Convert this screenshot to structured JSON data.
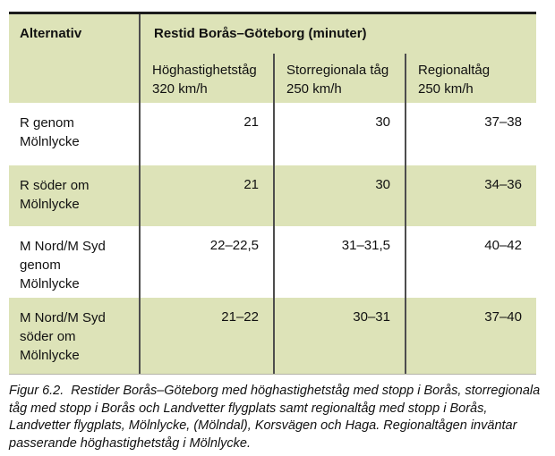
{
  "table": {
    "col1_header": "Alternativ",
    "title": "Restid Borås–Göteborg (minuter)",
    "subheaders": [
      "Höghastighetståg\n320 km/h",
      "Storregionala tåg\n250 km/h",
      "Regionaltåg\n250 km/h"
    ],
    "rows": [
      {
        "label": "R genom\nMölnlycke",
        "values": [
          "21",
          "30",
          "37–38"
        ]
      },
      {
        "label": "R söder om\nMölnlycke",
        "values": [
          "21",
          "30",
          "34–36"
        ]
      },
      {
        "label": "M Nord/M Syd\ngenom\nMölnlycke",
        "values": [
          "22–22,5",
          "31–31,5",
          "40–42"
        ]
      },
      {
        "label": "M Nord/M Syd\nsöder om\nMölnlycke",
        "values": [
          "21–22",
          "30–31",
          "37–40"
        ]
      }
    ]
  },
  "caption": "Figur 6.2.  Restider Borås–Göteborg med höghastighetståg med stopp i Borås, storregionala\ntåg med stopp i Borås och Landvetter flygplats samt regionaltåg med stopp i Borås,\nLandvetter flygplats, Mölnlycke, (Mölndal), Korsvägen och Haga. Regionaltågen inväntar\npasserande höghastighetståg i Mölnlycke.",
  "colors": {
    "row_green": "#dde3b8",
    "top_border": "#1c1c1c",
    "divider": "#4d4d4d"
  },
  "chart_data": {
    "type": "table",
    "title": "Restid Borås–Göteborg (minuter)",
    "row_header": "Alternativ",
    "columns": [
      "Höghastighetståg 320 km/h",
      "Storregionala tåg 250 km/h",
      "Regionaltåg 250 km/h"
    ],
    "rows": [
      {
        "alternativ": "R genom Mölnlycke",
        "values": [
          "21",
          "30",
          "37–38"
        ]
      },
      {
        "alternativ": "R söder om Mölnlycke",
        "values": [
          "21",
          "30",
          "34–36"
        ]
      },
      {
        "alternativ": "M Nord/M Syd genom Mölnlycke",
        "values": [
          "22–22,5",
          "31–31,5",
          "40–42"
        ]
      },
      {
        "alternativ": "M Nord/M Syd söder om Mölnlycke",
        "values": [
          "21–22",
          "30–31",
          "37–40"
        ]
      }
    ]
  }
}
